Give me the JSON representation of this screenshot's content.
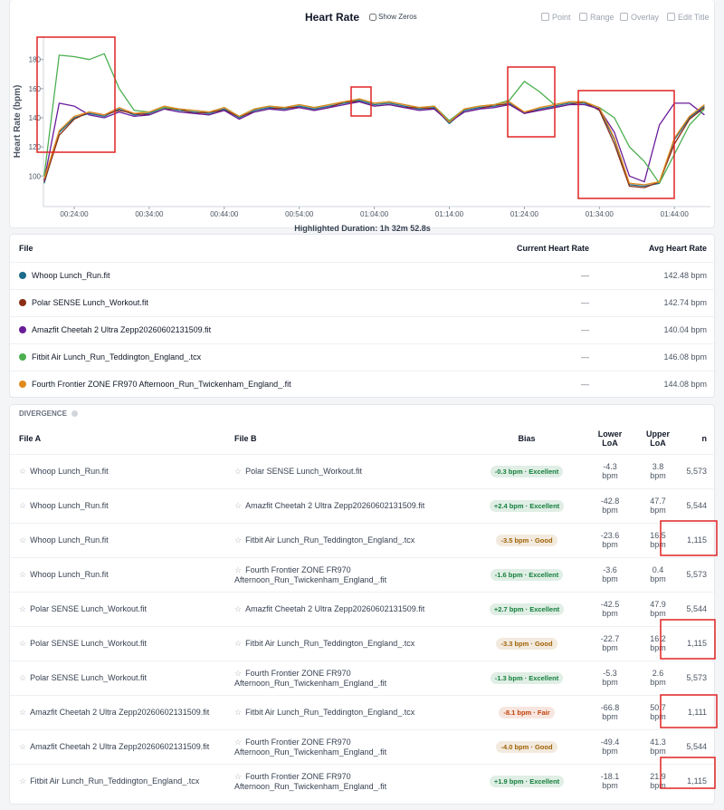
{
  "header": {
    "title": "Heart Rate",
    "show_zeros": "Show Zeros",
    "buttons": [
      "Point",
      "Range",
      "Overlay",
      "Edit Title"
    ]
  },
  "chart_data": {
    "type": "line",
    "ylabel": "Heart Rate (bpm)",
    "caption": "Highlighted Duration: 1h 32m 52.8s",
    "xlim": [
      19.9,
      108.8
    ],
    "ylim": [
      79,
      196
    ],
    "grid": false,
    "xticks": [
      {
        "value": 24,
        "label": "00:24:00"
      },
      {
        "value": 34,
        "label": "00:34:00"
      },
      {
        "value": 44,
        "label": "00:44:00"
      },
      {
        "value": 54,
        "label": "00:54:00"
      },
      {
        "value": 64,
        "label": "01:04:00"
      },
      {
        "value": 74,
        "label": "01:14:00"
      },
      {
        "value": 84,
        "label": "01:24:00"
      },
      {
        "value": 94,
        "label": "01:34:00"
      },
      {
        "value": 104,
        "label": "01:44:00"
      }
    ],
    "yticks": [
      100,
      120,
      140,
      160,
      180
    ],
    "x": [
      20,
      22,
      24,
      26,
      28,
      30,
      32,
      34,
      36,
      38,
      40,
      42,
      44,
      46,
      48,
      50,
      52,
      54,
      56,
      58,
      60,
      62,
      64,
      66,
      68,
      70,
      72,
      74,
      76,
      78,
      80,
      82,
      84,
      86,
      88,
      90,
      92,
      94,
      96,
      98,
      100,
      102,
      104,
      106,
      108
    ],
    "series": [
      {
        "name": "Whoop Lunch_Run.fit",
        "color": "#1b6b8a",
        "values": [
          95,
          130,
          140,
          143,
          141,
          146,
          142,
          143,
          147,
          145,
          144,
          143,
          146,
          140,
          145,
          147,
          146,
          148,
          146,
          148,
          150,
          152,
          149,
          150,
          148,
          146,
          147,
          136,
          145,
          147,
          148,
          150,
          143,
          146,
          148,
          150,
          150,
          146,
          125,
          94,
          93,
          95,
          125,
          140,
          148
        ]
      },
      {
        "name": "Polar SENSE Lunch_Workout.fit",
        "color": "#8b2e16",
        "values": [
          96,
          128,
          139,
          144,
          142,
          145,
          143,
          142,
          146,
          146,
          143,
          144,
          145,
          141,
          144,
          146,
          147,
          147,
          145,
          147,
          151,
          151,
          148,
          149,
          147,
          147,
          146,
          137,
          144,
          146,
          149,
          149,
          144,
          145,
          147,
          149,
          151,
          145,
          122,
          93,
          92,
          96,
          122,
          139,
          147
        ]
      },
      {
        "name": "Amazfit Cheetah 2 Ultra Zepp20260602131509.fit",
        "color": "#6a1b9a",
        "values": [
          97,
          150,
          148,
          142,
          140,
          144,
          141,
          142,
          146,
          144,
          143,
          142,
          145,
          139,
          144,
          146,
          145,
          147,
          145,
          147,
          149,
          151,
          148,
          149,
          147,
          145,
          146,
          137,
          144,
          146,
          147,
          149,
          143,
          145,
          147,
          149,
          149,
          146,
          130,
          100,
          96,
          135,
          150,
          150,
          142
        ]
      },
      {
        "name": "Fitbit Air Lunch_Run_Teddington_England_.tcx",
        "color": "#4caf50",
        "values": [
          100,
          183,
          182,
          180,
          184,
          160,
          145,
          144,
          147,
          146,
          145,
          144,
          147,
          141,
          146,
          148,
          147,
          149,
          147,
          149,
          151,
          153,
          150,
          151,
          149,
          147,
          148,
          138,
          146,
          148,
          149,
          152,
          165,
          158,
          149,
          151,
          151,
          147,
          140,
          120,
          110,
          95,
          115,
          135,
          146
        ]
      },
      {
        "name": "Fourth Frontier ZONE FR970 Afternoon_Run_Twickenham_England_.fit",
        "color": "#e08a1e",
        "values": [
          98,
          131,
          141,
          144,
          142,
          147,
          143,
          144,
          148,
          146,
          145,
          144,
          147,
          141,
          146,
          148,
          147,
          149,
          147,
          149,
          151,
          153,
          150,
          151,
          149,
          147,
          148,
          137,
          146,
          148,
          149,
          151,
          144,
          147,
          149,
          151,
          151,
          147,
          126,
          95,
          94,
          96,
          126,
          141,
          149
        ]
      }
    ]
  },
  "file_table": {
    "headers": [
      "File",
      "Current Heart Rate",
      "Avg Heart Rate"
    ],
    "rows": [
      {
        "current": "—",
        "avg": "142.48 bpm"
      },
      {
        "current": "—",
        "avg": "142.74 bpm"
      },
      {
        "current": "—",
        "avg": "140.04 bpm"
      },
      {
        "current": "—",
        "avg": "146.08 bpm"
      },
      {
        "current": "—",
        "avg": "144.08 bpm"
      }
    ]
  },
  "divergence": {
    "title": "DIVERGENCE",
    "headers": [
      "File A",
      "File B",
      "Bias",
      "Lower LoA",
      "Upper LoA",
      "n"
    ],
    "rows": [
      {
        "a": "Whoop Lunch_Run.fit",
        "b": "Polar SENSE Lunch_Workout.fit",
        "bias": "-0.3 bpm · Excellent",
        "bias_color": "#15803d",
        "lower": "-4.3 bpm",
        "upper": "3.8 bpm",
        "n": "5,573"
      },
      {
        "a": "Whoop Lunch_Run.fit",
        "b": "Amazfit Cheetah 2 Ultra Zepp20260602131509.fit",
        "bias": "+2.4 bpm · Excellent",
        "bias_color": "#15803d",
        "lower": "-42.8 bpm",
        "upper": "47.7 bpm",
        "n": "5,544"
      },
      {
        "a": "Whoop Lunch_Run.fit",
        "b": "Fitbit Air Lunch_Run_Teddington_England_.tcx",
        "bias": "-3.5 bpm · Good",
        "bias_color": "#a16207",
        "lower": "-23.6 bpm",
        "upper": "16.5 bpm",
        "n": "1,115"
      },
      {
        "a": "Whoop Lunch_Run.fit",
        "b": "Fourth Frontier ZONE FR970 Afternoon_Run_Twickenham_England_.fit",
        "bias": "-1.6 bpm · Excellent",
        "bias_color": "#15803d",
        "lower": "-3.6 bpm",
        "upper": "0.4 bpm",
        "n": "5,573"
      },
      {
        "a": "Polar SENSE Lunch_Workout.fit",
        "b": "Amazfit Cheetah 2 Ultra Zepp20260602131509.fit",
        "bias": "+2.7 bpm · Excellent",
        "bias_color": "#15803d",
        "lower": "-42.5 bpm",
        "upper": "47.9 bpm",
        "n": "5,544"
      },
      {
        "a": "Polar SENSE Lunch_Workout.fit",
        "b": "Fitbit Air Lunch_Run_Teddington_England_.tcx",
        "bias": "-3.3 bpm · Good",
        "bias_color": "#a16207",
        "lower": "-22.7 bpm",
        "upper": "16.2 bpm",
        "n": "1,115"
      },
      {
        "a": "Polar SENSE Lunch_Workout.fit",
        "b": "Fourth Frontier ZONE FR970 Afternoon_Run_Twickenham_England_.fit",
        "bias": "-1.3 bpm · Excellent",
        "bias_color": "#15803d",
        "lower": "-5.3 bpm",
        "upper": "2.6 bpm",
        "n": "5,573"
      },
      {
        "a": "Amazfit Cheetah 2 Ultra Zepp20260602131509.fit",
        "b": "Fitbit Air Lunch_Run_Teddington_England_.tcx",
        "bias": "-8.1 bpm · Fair",
        "bias_color": "#c2410c",
        "lower": "-66.8 bpm",
        "upper": "50.7 bpm",
        "n": "1,111"
      },
      {
        "a": "Amazfit Cheetah 2 Ultra Zepp20260602131509.fit",
        "b": "Fourth Frontier ZONE FR970 Afternoon_Run_Twickenham_England_.fit",
        "bias": "-4.0 bpm · Good",
        "bias_color": "#a16207",
        "lower": "-49.4 bpm",
        "upper": "41.3 bpm",
        "n": "5,544"
      },
      {
        "a": "Fitbit Air Lunch_Run_Teddington_England_.tcx",
        "b": "Fourth Frontier ZONE FR970 Afternoon_Run_Twickenham_England_.fit",
        "bias": "+1.9 bpm · Excellent",
        "bias_color": "#15803d",
        "lower": "-18.1 bpm",
        "upper": "21.9 bpm",
        "n": "1,115"
      }
    ]
  }
}
